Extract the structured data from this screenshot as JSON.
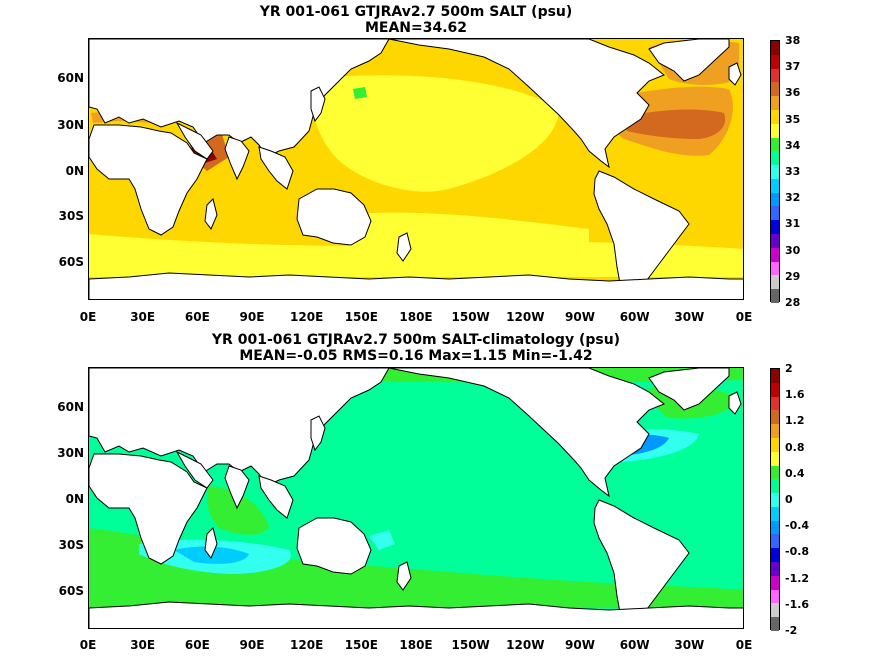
{
  "maps": [
    {
      "title": "YR 001-061 GTJRAv2.7 500m SALT (psu)",
      "subtitle": "MEAN=34.62",
      "colorbar": {
        "labels": [
          "38",
          "37",
          "36",
          "35",
          "34",
          "33",
          "32",
          "31",
          "30",
          "29",
          "28"
        ],
        "colors": [
          "#8b0000",
          "#c00000",
          "#e03030",
          "#d2691e",
          "#f0a020",
          "#ffd700",
          "#ffff33",
          "#33ee33",
          "#00ff99",
          "#33ffee",
          "#00ccff",
          "#0099ff",
          "#3366ff",
          "#0000dd",
          "#6600cc",
          "#cc00cc",
          "#ff66ff",
          "#cccccc",
          "#666666"
        ]
      },
      "ocean_color": "#ffd700",
      "features": [
        {
          "name": "ocean-base",
          "color": "#ffd700"
        },
        {
          "name": "north-pacific-high",
          "color": "#ffff33"
        },
        {
          "name": "south-pacific-high",
          "color": "#ffff33"
        },
        {
          "name": "southern-ocean-band",
          "color": "#ffff33"
        },
        {
          "name": "atlantic-orange",
          "color": "#f0a020"
        },
        {
          "name": "atlantic-core",
          "color": "#d2691e"
        },
        {
          "name": "arabian-sea",
          "color": "#f0a020"
        },
        {
          "name": "red-sea",
          "color": "#d2691e"
        },
        {
          "name": "mediterranean",
          "color": "#8b0000"
        },
        {
          "name": "nordic-seas",
          "color": "#f0a020"
        }
      ]
    },
    {
      "title": "YR 001-061 GTJRAv2.7 500m SALT-climatology (psu)",
      "subtitle": "MEAN=-0.05   RMS=0.16   Max=1.15   Min=-1.42",
      "colorbar": {
        "labels": [
          "2",
          "1.6",
          "1.2",
          "0.8",
          "0.4",
          "0",
          "-0.4",
          "-0.8",
          "-1.2",
          "-1.6",
          "-2"
        ],
        "colors": [
          "#8b0000",
          "#c00000",
          "#e03030",
          "#d2691e",
          "#f0a020",
          "#ffd700",
          "#ffff33",
          "#33ee33",
          "#00ff99",
          "#33ffee",
          "#00ccff",
          "#0099ff",
          "#3366ff",
          "#0000dd",
          "#6600cc",
          "#cc00cc",
          "#ff66ff",
          "#cccccc",
          "#666666"
        ]
      },
      "ocean_color": "#00ff99",
      "features": [
        {
          "name": "ocean-base",
          "color": "#00ff99"
        },
        {
          "name": "southern-green-1",
          "color": "#33ee33"
        },
        {
          "name": "southern-green-2",
          "color": "#33ee33"
        },
        {
          "name": "indian-green",
          "color": "#33ee33"
        },
        {
          "name": "arctic-green",
          "color": "#33ee33"
        },
        {
          "name": "indian-cyan",
          "color": "#33ffee"
        },
        {
          "name": "indian-light-blue",
          "color": "#00ccff"
        },
        {
          "name": "gulf-stream-cyan",
          "color": "#33ffee"
        },
        {
          "name": "gulf-stream-blue",
          "color": "#0099ff"
        },
        {
          "name": "gulf-stream-core",
          "color": "#3366ff"
        },
        {
          "name": "tasman-cyan",
          "color": "#33ffee"
        }
      ]
    }
  ],
  "lat_labels": [
    "60N",
    "30N",
    "0N",
    "30S",
    "60S"
  ],
  "lon_labels": [
    "0E",
    "30E",
    "60E",
    "90E",
    "120E",
    "150E",
    "180E",
    "150W",
    "120W",
    "90W",
    "60W",
    "30W",
    "0E"
  ],
  "land_color": "#ffffff",
  "coast_color": "#000000"
}
